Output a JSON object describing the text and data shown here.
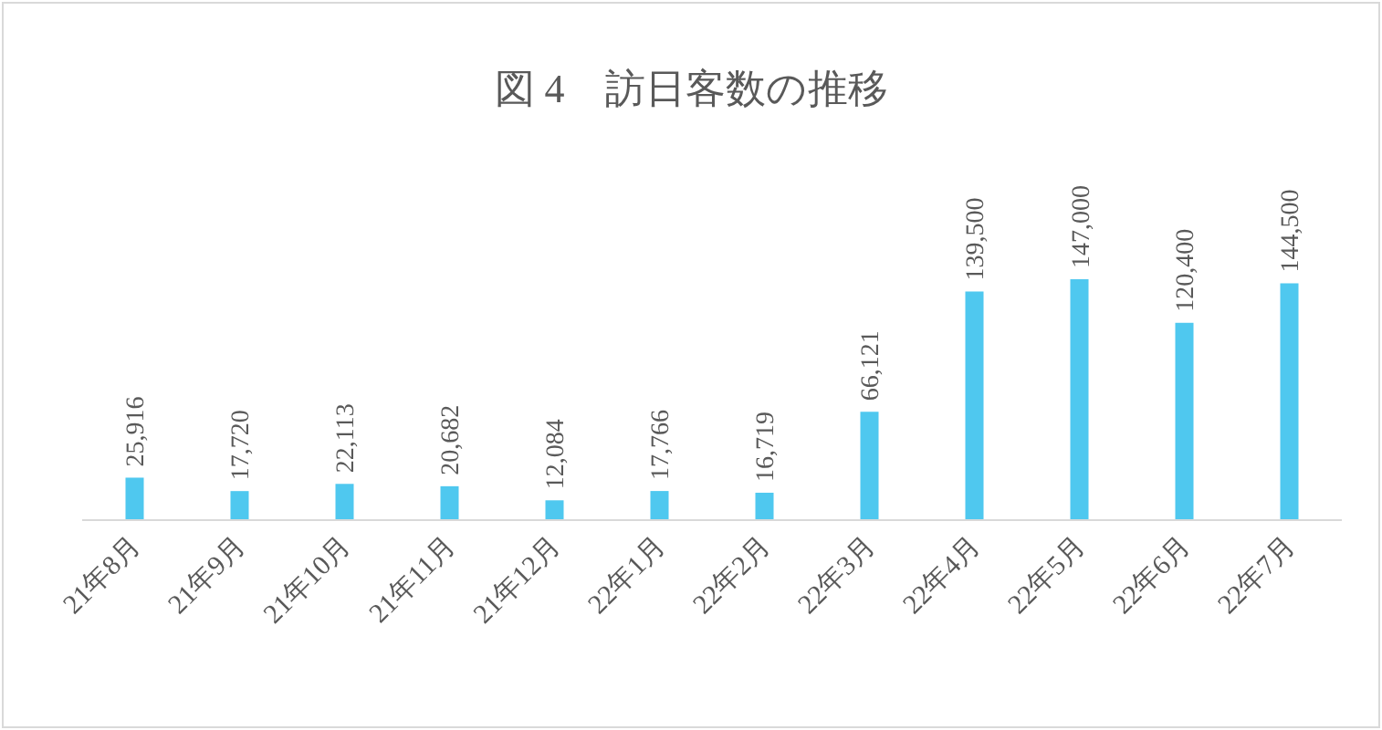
{
  "chart_data": {
    "type": "bar",
    "title": "図 4　訪日客数の推移",
    "categories": [
      "21年8月",
      "21年9月",
      "21年10月",
      "21年11月",
      "21年12月",
      "22年1月",
      "22年2月",
      "22年3月",
      "22年4月",
      "22年5月",
      "22年6月",
      "22年7月"
    ],
    "values": [
      25916,
      17720,
      22113,
      20682,
      12084,
      17766,
      16719,
      66121,
      139500,
      147000,
      120400,
      144500
    ],
    "value_labels": [
      "25,916",
      "17,720",
      "22,113",
      "20,682",
      "12,084",
      "17,766",
      "16,719",
      "66,121",
      "139,500",
      "147,000",
      "120,400",
      "144,500"
    ],
    "color": "#4fc8ef"
  }
}
